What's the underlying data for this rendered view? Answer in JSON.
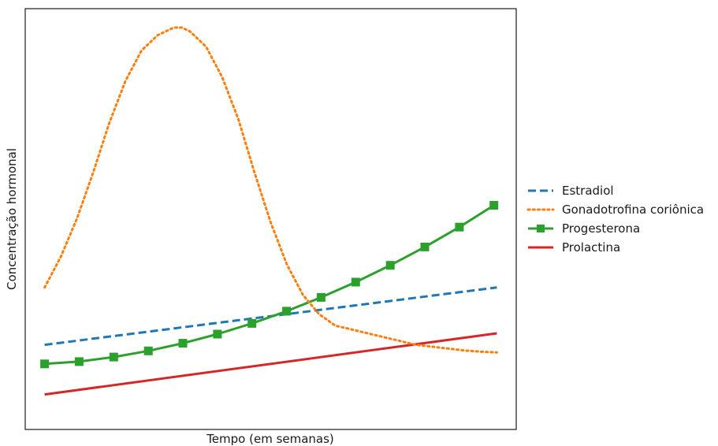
{
  "chart_data": {
    "type": "line",
    "title": "",
    "xlabel": "Tempo (em semanas)",
    "ylabel": "Concentração hormonal",
    "xticks_visible": false,
    "yticks_visible": false,
    "grid": false,
    "xlim": [
      -0.6,
      14.6
    ],
    "ylim": [
      0,
      1
    ],
    "legend_position": "outside-right",
    "series": [
      {
        "name": "Estradiol",
        "color": "#1f77b4",
        "style": "dashed",
        "marker": "none",
        "x": [
          0,
          14
        ],
        "y": [
          0.17,
          0.32
        ]
      },
      {
        "name": "Gonadotrofina coriônica",
        "color": "#ff7f0e",
        "style": "dotted",
        "marker": "none",
        "x": [
          0,
          0.5,
          1,
          1.5,
          2,
          2.5,
          3,
          3.5,
          4,
          4.25,
          4.5,
          5,
          5.5,
          6,
          6.5,
          7,
          7.5,
          8,
          8.5,
          9,
          9.5,
          10,
          10.5,
          11,
          11.5,
          12,
          12.5,
          13,
          13.5,
          14
        ],
        "y": [
          0.32,
          0.4,
          0.5,
          0.62,
          0.75,
          0.86,
          0.94,
          0.98,
          1.0,
          1.0,
          0.99,
          0.95,
          0.87,
          0.76,
          0.62,
          0.49,
          0.38,
          0.3,
          0.25,
          0.22,
          0.21,
          0.2,
          0.19,
          0.18,
          0.17,
          0.165,
          0.16,
          0.155,
          0.152,
          0.15
        ]
      },
      {
        "name": "Progesterona",
        "color": "#2ca02c",
        "style": "solid",
        "marker": "square",
        "x": [
          0,
          1.07,
          2.14,
          3.21,
          4.28,
          5.35,
          6.42,
          7.49,
          8.56,
          9.63,
          10.7,
          11.77,
          12.84,
          13.91
        ],
        "y": [
          0.12,
          0.126,
          0.138,
          0.154,
          0.174,
          0.198,
          0.226,
          0.258,
          0.294,
          0.334,
          0.378,
          0.426,
          0.478,
          0.535
        ]
      },
      {
        "name": "Prolactina",
        "color": "#d62728",
        "style": "solid",
        "marker": "none",
        "x": [
          0,
          14
        ],
        "y": [
          0.04,
          0.2
        ]
      }
    ]
  }
}
